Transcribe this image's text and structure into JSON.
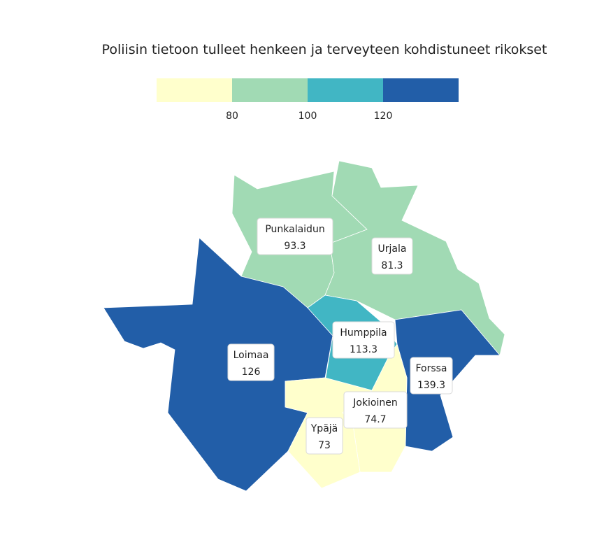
{
  "title": "Poliisin tietoon tulleet henkeen ja terveyteen kohdistuneet rikokset",
  "legend": {
    "bins": [
      {
        "color": "#ffffcc"
      },
      {
        "color": "#a1dab4"
      },
      {
        "color": "#41b6c4"
      },
      {
        "color": "#225ea8"
      }
    ],
    "ticks": [
      "80",
      "100",
      "120"
    ]
  },
  "regions": [
    {
      "name": "Punkalaidun",
      "value": "93.3",
      "color": "#a1dab4"
    },
    {
      "name": "Urjala",
      "value": "81.3",
      "color": "#a1dab4"
    },
    {
      "name": "Loimaa",
      "value": "126",
      "color": "#225ea8"
    },
    {
      "name": "Humppila",
      "value": "113.3",
      "color": "#41b6c4"
    },
    {
      "name": "Forssa",
      "value": "139.3",
      "color": "#225ea8"
    },
    {
      "name": "Jokioinen",
      "value": "74.7",
      "color": "#ffffcc"
    },
    {
      "name": "Ypäjä",
      "value": "73",
      "color": "#ffffcc"
    }
  ]
}
